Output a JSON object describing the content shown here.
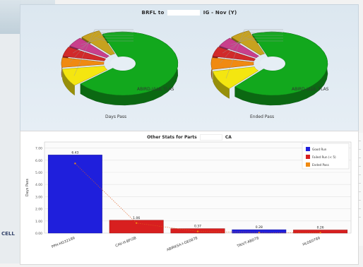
{
  "top_panel": {
    "title_left": "BRFL to",
    "title_right": "IG - Nov  (Y)",
    "pies": [
      {
        "caption": "Days Pass",
        "main_label": "ABIRD-I/LUL TLAS"
      },
      {
        "caption": "Ended Pass",
        "main_label": "ABIRD-I/LUL TLAS"
      }
    ]
  },
  "bottom_panel": {
    "title_left": "Other Stats for Parts",
    "title_right": "CA"
  },
  "chart_data": [
    {
      "type": "pie",
      "title": "",
      "slices": [
        {
          "value": 70,
          "color": "#12a81d"
        },
        {
          "value": 9,
          "color": "#f4e610"
        },
        {
          "value": 5,
          "color": "#f08a12"
        },
        {
          "value": 5,
          "color": "#d12a2a"
        },
        {
          "value": 5,
          "color": "#c83f8c"
        },
        {
          "value": 6,
          "color": "#c7a21f"
        }
      ]
    },
    {
      "type": "pie",
      "title": "",
      "slices": [
        {
          "value": 68,
          "color": "#12a81d"
        },
        {
          "value": 10,
          "color": "#f4e610"
        },
        {
          "value": 6,
          "color": "#f08a12"
        },
        {
          "value": 5,
          "color": "#d12a2a"
        },
        {
          "value": 5,
          "color": "#c83f8c"
        },
        {
          "value": 6,
          "color": "#c7a21f"
        }
      ]
    },
    {
      "type": "bar",
      "title": "Other Stats for Parts",
      "xlabel": "",
      "ylabel": "Days Pass",
      "ylim": [
        0,
        7.5
      ],
      "yticks": [
        "0.00",
        "1.00",
        "2.00",
        "3.00",
        "4.00",
        "5.00",
        "6.00",
        "7.00"
      ],
      "grid": true,
      "legend_position": "top-right",
      "legend": [
        {
          "label": "Good Run",
          "color": "#1f1fdc"
        },
        {
          "label": "Failed Run (< 5)",
          "color": "#d81f1f"
        },
        {
          "label": "Ended Pass",
          "color": "#f08a12"
        }
      ],
      "categories": [
        "PPH-HG32189",
        "CAV-H-BFI3B",
        "ABIRKSA-I-GE0878",
        "TRIVT-ABD78",
        "HLGE0789"
      ],
      "values": [
        6.43,
        1.06,
        0.37,
        0.28,
        0.26
      ],
      "value_labels": [
        "6.43",
        "1.06",
        "0.37",
        "0.28",
        "0.26"
      ],
      "colors": [
        "#1f1fdc",
        "#d81f1f",
        "#d81f1f",
        "#1f1fdc",
        "#d81f1f"
      ]
    }
  ],
  "background": {
    "left_tab_label": "CELL"
  }
}
